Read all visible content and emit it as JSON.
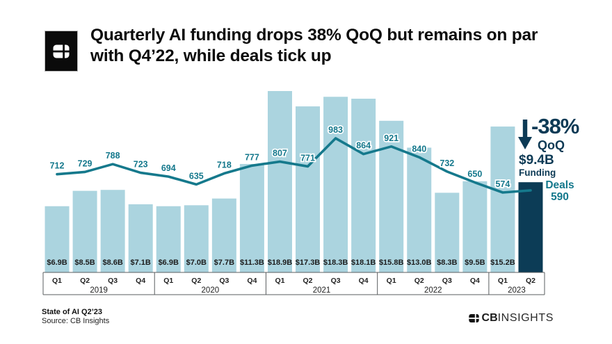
{
  "header": {
    "title_line1": "Quarterly AI funding drops 38% QoQ but remains on par",
    "title_line2": "with Q4’22, while deals tick up"
  },
  "chart_data": {
    "type": "bar",
    "title": "Quarterly AI funding drops 38% QoQ but remains on par with Q4’22, while deals tick up",
    "xlabel": "",
    "ylabel": "",
    "grid": false,
    "legend_position": "none",
    "x_groups": [
      {
        "year": "2019",
        "quarters": [
          "Q1",
          "Q2",
          "Q3",
          "Q4"
        ]
      },
      {
        "year": "2020",
        "quarters": [
          "Q1",
          "Q2",
          "Q3",
          "Q4"
        ]
      },
      {
        "year": "2021",
        "quarters": [
          "Q1",
          "Q2",
          "Q3",
          "Q4"
        ]
      },
      {
        "year": "2022",
        "quarters": [
          "Q1",
          "Q2",
          "Q3",
          "Q4"
        ]
      },
      {
        "year": "2023",
        "quarters": [
          "Q1",
          "Q2"
        ]
      }
    ],
    "series": [
      {
        "name": "Funding",
        "type": "bar",
        "unit": "$B",
        "values": [
          6.9,
          8.5,
          8.6,
          7.1,
          6.9,
          7.0,
          7.7,
          11.3,
          18.9,
          17.3,
          18.3,
          18.1,
          15.8,
          13.0,
          8.3,
          9.5,
          15.2,
          9.4
        ],
        "bar_labels": [
          "$6.9B",
          "$8.5B",
          "$8.6B",
          "$7.1B",
          "$6.9B",
          "$7.0B",
          "$7.7B",
          "$11.3B",
          "$18.9B",
          "$17.3B",
          "$18.3B",
          "$18.1B",
          "$15.8B",
          "$13.0B",
          "$8.3B",
          "$9.5B",
          "$15.2B",
          ""
        ],
        "highlight_index": 17
      },
      {
        "name": "Deals",
        "type": "line",
        "values": [
          712,
          729,
          788,
          723,
          694,
          635,
          718,
          777,
          807,
          771,
          983,
          864,
          921,
          840,
          732,
          650,
          574,
          590
        ],
        "point_labels": [
          "712",
          "729",
          "788",
          "723",
          "694",
          "635",
          "718",
          "777",
          "807",
          "771",
          "983",
          "864",
          "921",
          "840",
          "732",
          "650",
          "574",
          ""
        ]
      }
    ]
  },
  "annotations": {
    "change": "-38%",
    "change_period": "QoQ",
    "funding_value": "$9.4B",
    "funding_label": "Funding",
    "deals_label": "Deals",
    "deals_value": "590"
  },
  "footer": {
    "report_title": "State of AI Q2’23",
    "source": "Source: CB Insights",
    "brand_bold": "CB",
    "brand_light": "INSIGHTS"
  },
  "colors": {
    "bar": "#abd4df",
    "bar_highlight": "#0c3c56",
    "line": "#15798c",
    "deal_label": "#14788c",
    "bar_label": "#1c1c1c",
    "navy_text": "#0d3a55",
    "teal_text": "#14788c",
    "axis": "#5a5d5f",
    "axis_text": "#212121",
    "title_text": "#0c0c0c"
  }
}
